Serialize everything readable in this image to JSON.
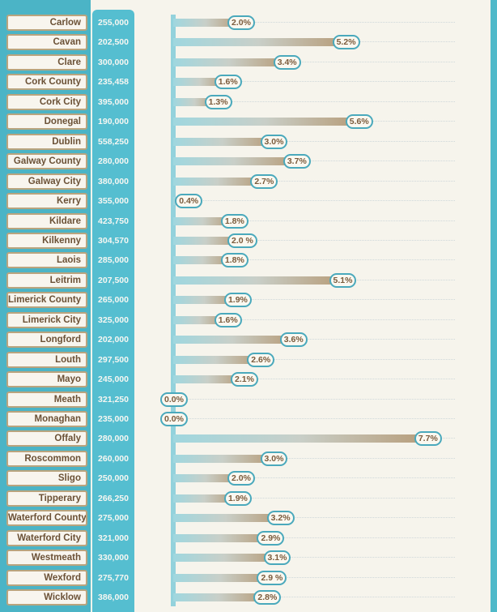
{
  "colors": {
    "background": "#f6f4ec",
    "band": "#4bb4c6",
    "price_column": "#55bed0",
    "name_border": "#b9a47e",
    "name_text": "#6b5136",
    "pill_border": "#4aa9bc",
    "bar_start": "#9fd7df",
    "bar_end": "#b79d7a"
  },
  "chart_data": {
    "type": "bar",
    "orientation": "horizontal",
    "grid": "dotted horizontal guide per row",
    "categories": [
      "Carlow",
      "Cavan",
      "Clare",
      "Cork County",
      "Cork City",
      "Donegal",
      "Dublin",
      "Galway County",
      "Galway City",
      "Kerry",
      "Kildare",
      "Kilkenny",
      "Laois",
      "Leitrim",
      "Limerick County",
      "Limerick City",
      "Longford",
      "Louth",
      "Mayo",
      "Meath",
      "Monaghan",
      "Offaly",
      "Roscommon",
      "Sligo",
      "Tipperary",
      "Waterford County",
      "Waterford City",
      "Westmeath",
      "Wexford",
      "Wicklow"
    ],
    "prices": [
      "255,000",
      "202,500",
      "300,000",
      "235,458",
      "395,000",
      "190,000",
      "558,250",
      "280,000",
      "380,000",
      "355,000",
      "423,750",
      "304,570",
      "285,000",
      "207,500",
      "265,000",
      "325,000",
      "202,000",
      "297,500",
      "245,000",
      "321,250",
      "235,000",
      "280,000",
      "260,000",
      "250,000",
      "266,250",
      "275,000",
      "321,000",
      "330,000",
      "275,770",
      "386,000"
    ],
    "values": [
      2.0,
      5.2,
      3.4,
      1.6,
      1.3,
      5.6,
      3.0,
      3.7,
      2.7,
      0.4,
      1.8,
      2.0,
      1.8,
      5.1,
      1.9,
      1.6,
      3.6,
      2.6,
      2.1,
      0.0,
      0.0,
      7.7,
      3.0,
      2.0,
      1.9,
      3.2,
      2.9,
      3.1,
      2.9,
      2.8
    ],
    "value_labels": [
      "2.0%",
      "5.2%",
      "3.4%",
      "1.6%",
      "1.3%",
      "5.6%",
      "3.0%",
      "3.7%",
      "2.7%",
      "0.4%",
      "1.8%",
      "2.0 %",
      "1.8%",
      "5.1%",
      "1.9%",
      "1.6%",
      "3.6%",
      "2.6%",
      "2.1%",
      "0.0%",
      "0.0%",
      "7.7%",
      "3.0%",
      "2.0%",
      "1.9%",
      "3.2%",
      "2.9%",
      "3.1%",
      "2.9 %",
      "2.8%"
    ],
    "xlim": [
      0,
      8
    ]
  }
}
